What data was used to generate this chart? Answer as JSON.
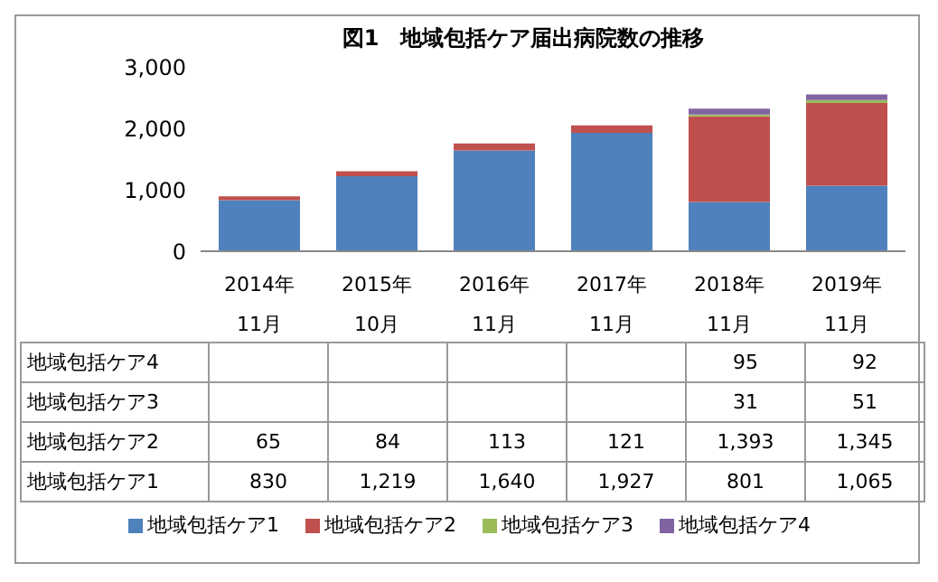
{
  "chart_data": {
    "type": "bar",
    "title": "図1　地域包括ケア届出病院数の推移",
    "categories": [
      "2014年\n11月",
      "2015年\n10月",
      "2016年\n11月",
      "2017年\n11月",
      "2018年\n11月",
      "2019年\n11月"
    ],
    "series": [
      {
        "name": "地域包括ケア1",
        "color": "#4f81bd",
        "values": [
          830,
          1219,
          1640,
          1927,
          801,
          1065
        ],
        "value_labels": [
          "830",
          "1,219",
          "1,640",
          "1,927",
          "801",
          "1,065"
        ]
      },
      {
        "name": "地域包括ケア2",
        "color": "#c0504d",
        "values": [
          65,
          84,
          113,
          121,
          1393,
          1345
        ],
        "value_labels": [
          "65",
          "84",
          "113",
          "121",
          "1,393",
          "1,345"
        ]
      },
      {
        "name": "地域包括ケア3",
        "color": "#9bbb59",
        "values": [
          null,
          null,
          null,
          null,
          31,
          51
        ],
        "value_labels": [
          null,
          null,
          null,
          null,
          "31",
          "51"
        ]
      },
      {
        "name": "地域包括ケア4",
        "color": "#8064a2",
        "values": [
          null,
          null,
          null,
          null,
          95,
          92
        ],
        "value_labels": [
          null,
          null,
          null,
          null,
          "95",
          "92"
        ]
      }
    ],
    "stacked": true,
    "ylim": [
      0,
      3000
    ],
    "yticks": [
      0,
      {
        "value": 1000,
        "label": "1,000"
      },
      {
        "value": 2000,
        "label": "2,000"
      },
      {
        "value": 3000,
        "label": "3,000"
      }
    ],
    "grid": false,
    "legend": "bottom"
  }
}
